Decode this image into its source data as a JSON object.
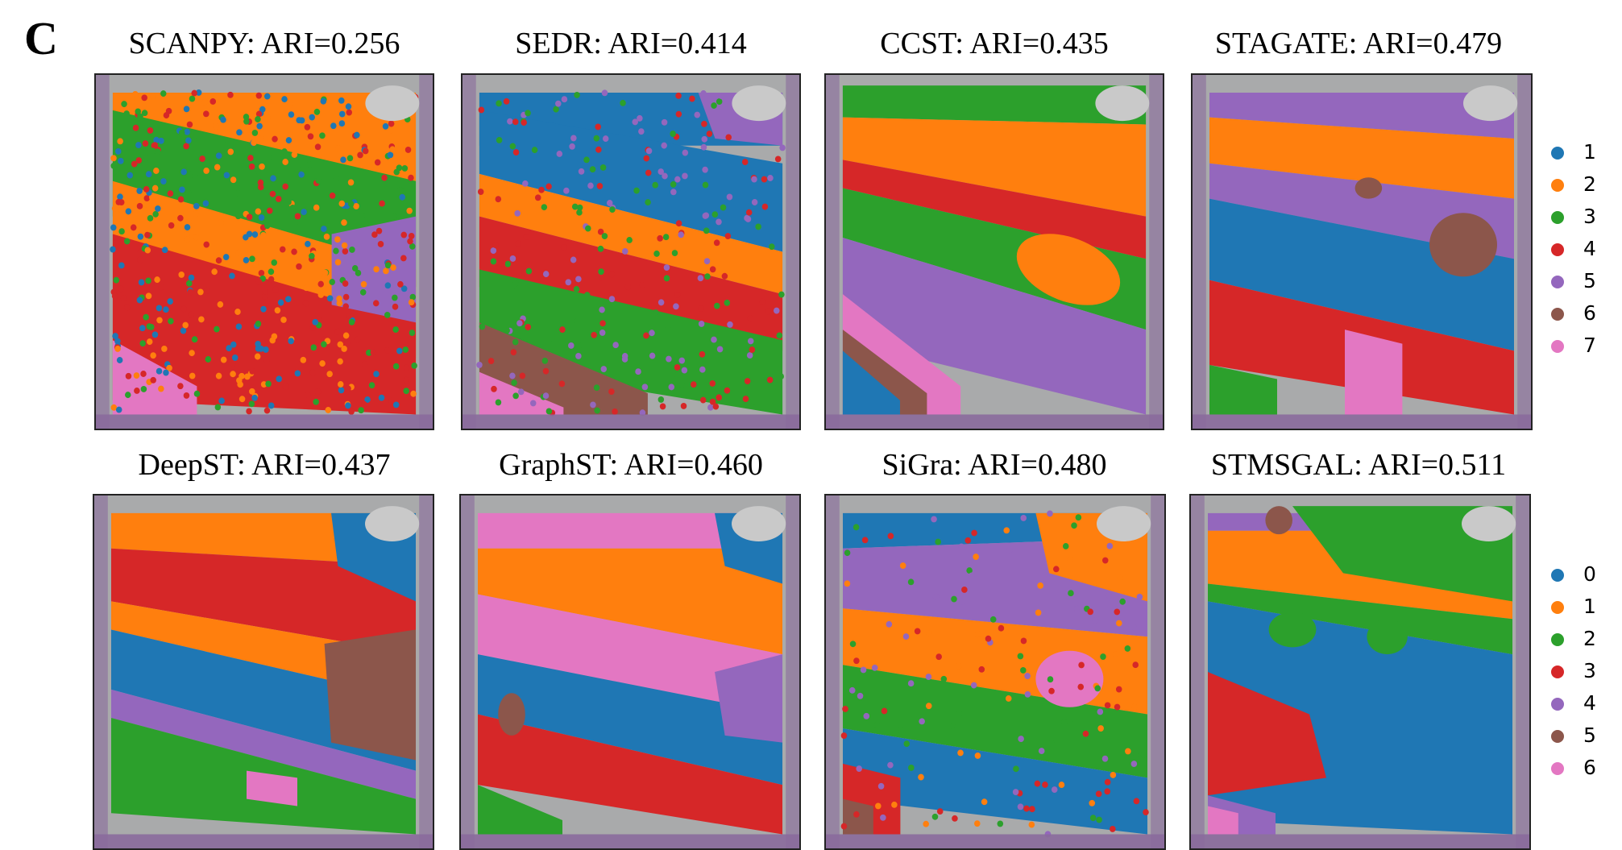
{
  "figure": {
    "panel_letter": "C",
    "palette": {
      "blue": "#1f77b4",
      "orange": "#ff7f0e",
      "green": "#2ca02c",
      "red": "#d62728",
      "purple": "#9467bd",
      "brown": "#8c564b",
      "pink": "#e377c2",
      "tissue_background": "#a9aaab",
      "tissue_edge": "#8a6a9c"
    },
    "panels": [
      {
        "method": "SCANPY",
        "ari": "0.256",
        "title": "SCANPY: ARI=0.256",
        "pattern": "scanpy"
      },
      {
        "method": "SEDR",
        "ari": "0.414",
        "title": "SEDR: ARI=0.414",
        "pattern": "sedr"
      },
      {
        "method": "CCST",
        "ari": "0.435",
        "title": "CCST: ARI=0.435",
        "pattern": "ccst"
      },
      {
        "method": "STAGATE",
        "ari": "0.479",
        "title": "STAGATE: ARI=0.479",
        "pattern": "stagate"
      },
      {
        "method": "DeepST",
        "ari": "0.437",
        "title": "DeepST: ARI=0.437",
        "pattern": "deepst"
      },
      {
        "method": "GraphST",
        "ari": "0.460",
        "title": "GraphST: ARI=0.460",
        "pattern": "graphst"
      },
      {
        "method": "SiGra",
        "ari": "0.480",
        "title": "SiGra: ARI=0.480",
        "pattern": "sigra"
      },
      {
        "method": "STMSGAL",
        "ari": "0.511",
        "title": "STMSGAL: ARI=0.511",
        "pattern": "stmsgal"
      }
    ],
    "legend_top": {
      "items": [
        {
          "label": "1",
          "color": "#1f77b4"
        },
        {
          "label": "2",
          "color": "#ff7f0e"
        },
        {
          "label": "3",
          "color": "#2ca02c"
        },
        {
          "label": "4",
          "color": "#d62728"
        },
        {
          "label": "5",
          "color": "#9467bd"
        },
        {
          "label": "6",
          "color": "#8c564b"
        },
        {
          "label": "7",
          "color": "#e377c2"
        }
      ]
    },
    "legend_bottom": {
      "items": [
        {
          "label": "0",
          "color": "#1f77b4"
        },
        {
          "label": "1",
          "color": "#ff7f0e"
        },
        {
          "label": "2",
          "color": "#2ca02c"
        },
        {
          "label": "3",
          "color": "#d62728"
        },
        {
          "label": "4",
          "color": "#9467bd"
        },
        {
          "label": "5",
          "color": "#8c564b"
        },
        {
          "label": "6",
          "color": "#e377c2"
        }
      ]
    }
  }
}
